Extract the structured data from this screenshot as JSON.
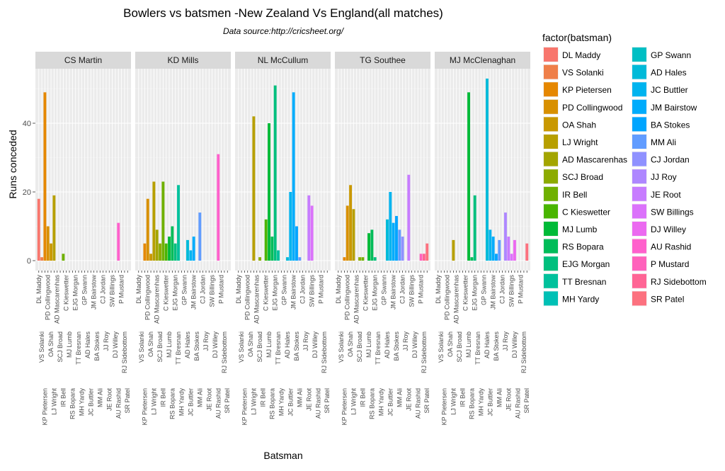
{
  "chart_data": {
    "type": "bar",
    "title": "Bowlers vs batsmen -New Zealand Vs England(all matches)",
    "subtitle": "Data source:http://cricsheet.org/",
    "xlabel": "Batsman",
    "ylabel": "Runs conceded",
    "ylim": [
      0,
      56
    ],
    "yticks": [
      0,
      20,
      40
    ],
    "grid": true,
    "legend_title": "factor(batsman)",
    "legend_position": "right",
    "categories": [
      "DL Maddy",
      "VS Solanki",
      "KP Pietersen",
      "PD Collingwood",
      "OA Shah",
      "LJ Wright",
      "AD Mascarenhas",
      "SCJ Broad",
      "IR Bell",
      "C Kieswetter",
      "MJ Lumb",
      "RS Bopara",
      "EJG Morgan",
      "TT Bresnan",
      "MH Yardy",
      "GP Swann",
      "AD Hales",
      "JC Buttler",
      "JM Bairstow",
      "BA Stokes",
      "MM Ali",
      "CJ Jordan",
      "JJ Roy",
      "JE Root",
      "SW Billings",
      "DJ Willey",
      "AU Rashid",
      "P Mustard",
      "RJ Sidebottom",
      "SR Patel"
    ],
    "colors": [
      "#F8766D",
      "#EF7F49",
      "#E58700",
      "#D89000",
      "#C99800",
      "#B79F00",
      "#A3A500",
      "#8CAB00",
      "#6FB000",
      "#49B500",
      "#00BA38",
      "#00BC59",
      "#00BF7D",
      "#00C19C",
      "#00C0B5",
      "#00BFC4",
      "#00BAD9",
      "#00B4EF",
      "#00ACFC",
      "#00A5FF",
      "#619CFF",
      "#8F91FF",
      "#AE87FF",
      "#C77CFF",
      "#DB72FB",
      "#EB6AF0",
      "#FF61CC",
      "#FF62BC",
      "#FF6595",
      "#FC717F"
    ],
    "facets": [
      {
        "bowler": "CS Martin",
        "values": {
          "DL Maddy": 18,
          "VS Solanki": 1,
          "KP Pietersen": 49,
          "PD Collingwood": 10,
          "OA Shah": 5,
          "LJ Wright": 19,
          "IR Bell": 2,
          "AU Rashid": 11
        }
      },
      {
        "bowler": "KD Mills",
        "values": {
          "KP Pietersen": 5,
          "PD Collingwood": 18,
          "OA Shah": 2,
          "LJ Wright": 23,
          "AD Mascarenhas": 9,
          "SCJ Broad": 5,
          "IR Bell": 23,
          "C Kieswetter": 5,
          "MJ Lumb": 7,
          "RS Bopara": 10,
          "EJG Morgan": 5,
          "TT Bresnan": 22,
          "AD Hales": 6,
          "JC Buttler": 3,
          "JM Bairstow": 7,
          "MM Ali": 14,
          "AU Rashid": 31
        }
      },
      {
        "bowler": "NL McCullum",
        "values": {
          "LJ Wright": 42,
          "SCJ Broad": 1,
          "C Kieswetter": 12,
          "MJ Lumb": 40,
          "RS Bopara": 7,
          "EJG Morgan": 51,
          "TT Bresnan": 3,
          "AD Hales": 1,
          "JC Buttler": 20,
          "JM Bairstow": 49,
          "BA Stokes": 10,
          "MM Ali": 1,
          "JE Root": 19,
          "SW Billings": 16
        }
      },
      {
        "bowler": "TG Southee",
        "values": {
          "KP Pietersen": 1,
          "PD Collingwood": 16,
          "OA Shah": 22,
          "LJ Wright": 15,
          "SCJ Broad": 1,
          "IR Bell": 1,
          "MJ Lumb": 8,
          "RS Bopara": 9,
          "EJG Morgan": 1,
          "AD Hales": 12,
          "JC Buttler": 20,
          "JM Bairstow": 11,
          "BA Stokes": 13,
          "MM Ali": 9,
          "CJ Jordan": 7,
          "JE Root": 25,
          "P Mustard": 2,
          "RJ Sidebottom": 2,
          "SR Patel": 5
        }
      },
      {
        "bowler": "MJ McClenaghan",
        "values": {
          "LJ Wright": 6,
          "MJ Lumb": 49,
          "RS Bopara": 1,
          "EJG Morgan": 19,
          "AD Hales": 53,
          "JC Buttler": 9,
          "JM Bairstow": 7,
          "BA Stokes": 2,
          "MM Ali": 6,
          "JJ Roy": 14,
          "JE Root": 7,
          "SW Billings": 2,
          "DJ Willey": 6,
          "SR Patel": 5
        }
      }
    ]
  }
}
